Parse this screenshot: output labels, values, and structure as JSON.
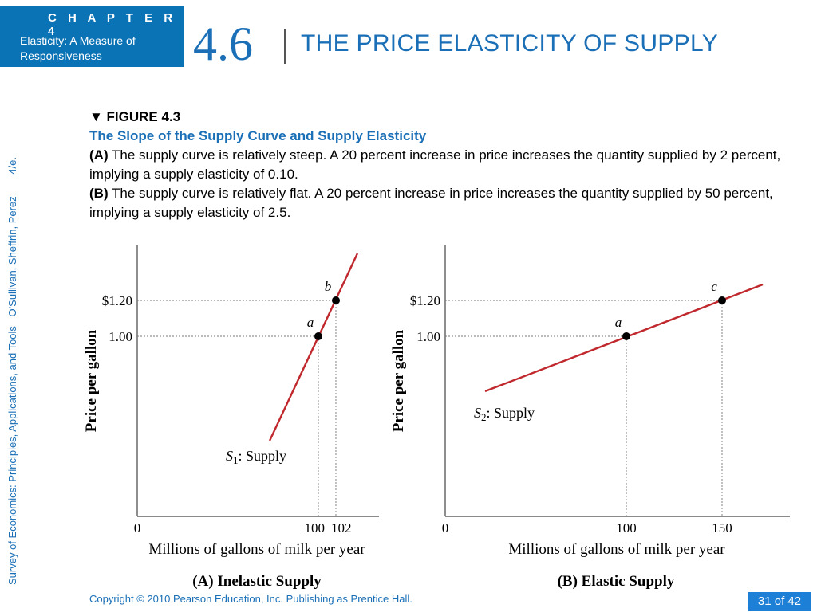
{
  "header": {
    "chapter_label": "C H A P T E R  4",
    "chapter_subtitle": "Elasticity: A Measure of Responsiveness",
    "section_number": "4.6",
    "slide_title": "THE PRICE ELASTICITY OF SUPPLY"
  },
  "sidebar": {
    "book_title": "Survey of Economics: Principles, Applications, and Tools",
    "authors": "O'Sullivan, Sheffrin, Perez",
    "edition": "4/e."
  },
  "figure": {
    "label": "▼ FIGURE 4.3",
    "subtitle": "The Slope of the Supply Curve and Supply Elasticity",
    "a_tag": "(A)",
    "a_text": " The supply curve is relatively steep. A 20 percent increase in price increases the quantity supplied by 2 percent, implying a supply elasticity of 0.10.",
    "b_tag": "(B)",
    "b_text": " The supply curve is relatively flat. A 20 percent increase in price increases the quantity supplied by 50 percent, implying a supply elasticity of 2.5."
  },
  "chart_data": [
    {
      "type": "line",
      "title": "(A) Inelastic Supply",
      "xlabel": "Millions of gallons of milk per year",
      "ylabel": "Price per gallon",
      "curve_label_prefix": "S",
      "curve_label_sub": "1",
      "curve_label_suffix": ": Supply",
      "x_ticks": [
        {
          "value": 0,
          "label": "0"
        },
        {
          "value": 100,
          "label": "100"
        },
        {
          "value": 102,
          "label": "102"
        }
      ],
      "y_ticks": [
        {
          "value": 1.0,
          "label": "1.00"
        },
        {
          "value": 1.2,
          "label": "$1.20"
        }
      ],
      "points": [
        {
          "name": "a",
          "x": 100,
          "y": 1.0
        },
        {
          "name": "b",
          "x": 102,
          "y": 1.2
        }
      ],
      "line_color": "#c0282d"
    },
    {
      "type": "line",
      "title": "(B) Elastic Supply",
      "xlabel": "Millions of gallons of milk per year",
      "ylabel": "Price per gallon",
      "curve_label_prefix": "S",
      "curve_label_sub": "2",
      "curve_label_suffix": ": Supply",
      "x_ticks": [
        {
          "value": 0,
          "label": "0"
        },
        {
          "value": 100,
          "label": "100"
        },
        {
          "value": 150,
          "label": "150"
        }
      ],
      "y_ticks": [
        {
          "value": 1.0,
          "label": "1.00"
        },
        {
          "value": 1.2,
          "label": "$1.20"
        }
      ],
      "points": [
        {
          "name": "a",
          "x": 100,
          "y": 1.0
        },
        {
          "name": "c",
          "x": 150,
          "y": 1.2
        }
      ],
      "line_color": "#c0282d"
    }
  ],
  "footer": {
    "copyright": "Copyright © 2010  Pearson Education, Inc. Publishing as Prentice Hall.",
    "page": "31 of 42"
  }
}
